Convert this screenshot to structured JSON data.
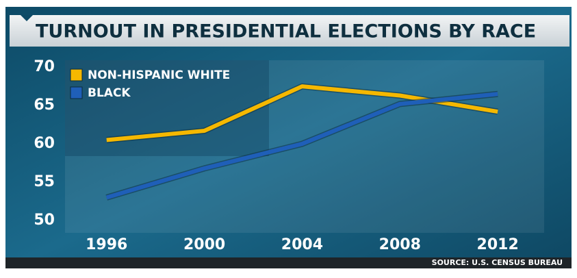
{
  "chart_data": {
    "type": "line",
    "title": "TURNOUT IN PRESIDENTIAL ELECTIONS BY RACE",
    "source": "SOURCE: U.S. CENSUS BUREAU",
    "x": [
      1996,
      2000,
      2004,
      2008,
      2012
    ],
    "series": [
      {
        "name": "NON-HISPANIC WHITE",
        "color": "#f5b800",
        "values": [
          60.5,
          61.7,
          67.5,
          66.3,
          64.2
        ]
      },
      {
        "name": "BLACK",
        "color": "#1f5fb8",
        "values": [
          53.0,
          56.8,
          60.0,
          65.2,
          66.5
        ]
      }
    ],
    "xlim": [
      1994.3,
      2013.9
    ],
    "xticks": [
      1996,
      2000,
      2004,
      2008,
      2012
    ],
    "ylim": [
      48.4,
      70.9
    ],
    "yticks": [
      50,
      55,
      60,
      65,
      70
    ],
    "grid": false,
    "legend": "top-left"
  }
}
